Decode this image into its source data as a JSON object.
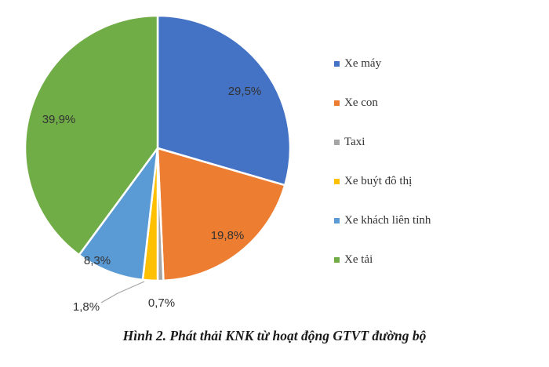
{
  "chart_data": {
    "type": "pie",
    "labels": [
      "Xe máy",
      "Xe con",
      "Taxi",
      "Xe buýt đô thị",
      "Xe khách liên tỉnh",
      "Xe tải"
    ],
    "values": [
      29.5,
      19.8,
      0.7,
      1.8,
      8.3,
      39.9
    ],
    "value_labels": [
      "29,5%",
      "19,8%",
      "0,7%",
      "1,8%",
      "8,3%",
      "39,9%"
    ],
    "colors": [
      "#4472C4",
      "#ED7D31",
      "#A5A5A5",
      "#FFC000",
      "#5B9BD5",
      "#70AD47"
    ],
    "legend_position": "right",
    "start": "12 o'clock",
    "direction": "clockwise"
  },
  "caption": "Hình 2. Phát thải KNK từ hoạt động GTVT đường bộ"
}
